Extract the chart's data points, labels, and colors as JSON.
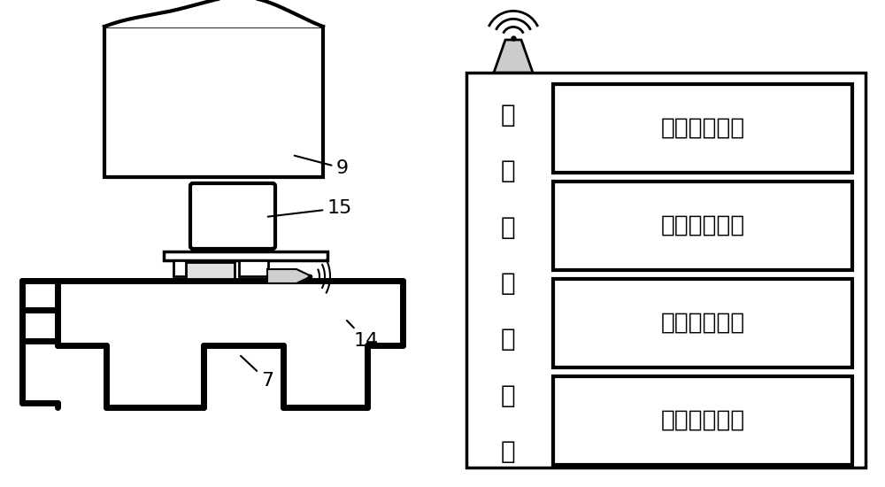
{
  "bg_color": "#ffffff",
  "lc": "#000000",
  "lw": 2.5,
  "tlw": 5.0,
  "right_box_labels": [
    "数据接收单元",
    "数据处理单元",
    "数据存储单元",
    "数据显示单元"
  ],
  "vertical_label": "便携式称重机箱",
  "fig_width": 10.0,
  "fig_height": 5.5
}
